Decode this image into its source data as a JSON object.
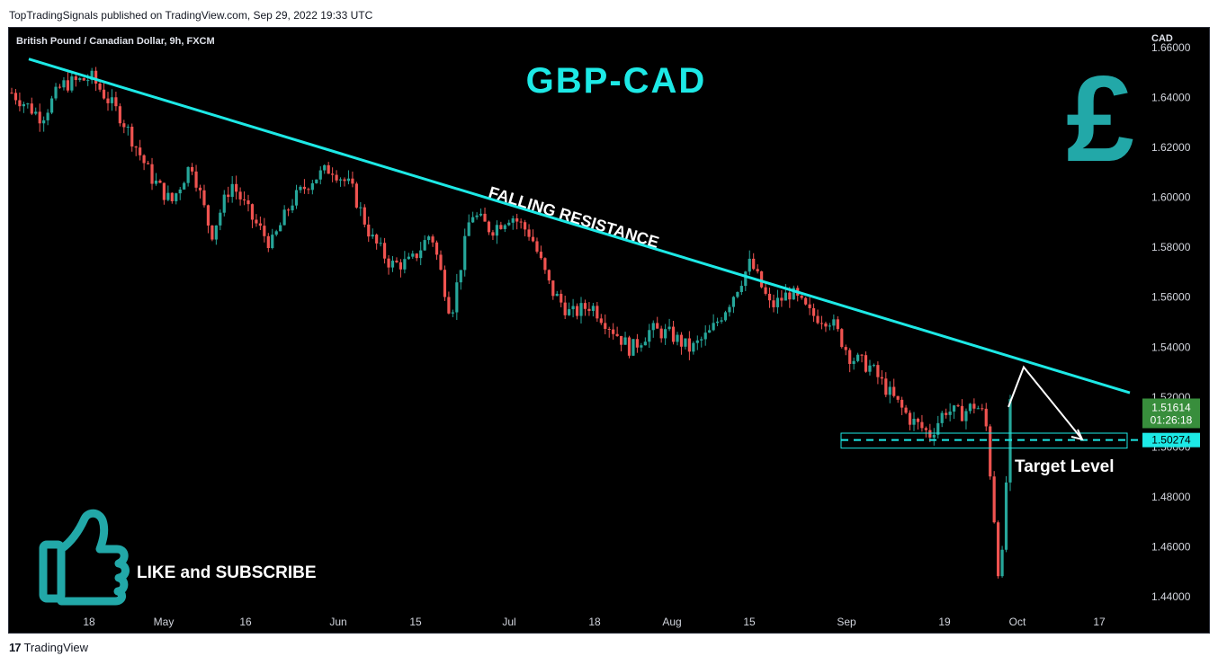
{
  "header": {
    "published": "TopTradingSignals published on TradingView.com, Sep 29, 2022 19:33 UTC"
  },
  "footer": {
    "brand": "TradingView"
  },
  "chart_data": {
    "type": "candlestick",
    "symbol": "British Pound / Canadian Dollar, 9h, FXCM",
    "title": "GBP-CAD",
    "currency": "CAD",
    "ylim": [
      1.432,
      1.668
    ],
    "y_ticks": [
      "1.66000",
      "1.64000",
      "1.62000",
      "1.60000",
      "1.58000",
      "1.56000",
      "1.54000",
      "1.52000",
      "1.50000",
      "1.48000",
      "1.46000",
      "1.44000"
    ],
    "x_ticks": [
      "18",
      "May",
      "16",
      "Jun",
      "15",
      "Jul",
      "18",
      "Aug",
      "15",
      "Sep",
      "19",
      "Oct",
      "17"
    ],
    "close_path": [
      {
        "t": 0.0,
        "v": 1.642
      },
      {
        "t": 0.03,
        "v": 1.632
      },
      {
        "t": 0.05,
        "v": 1.645
      },
      {
        "t": 0.08,
        "v": 1.648
      },
      {
        "t": 0.11,
        "v": 1.632
      },
      {
        "t": 0.14,
        "v": 1.608
      },
      {
        "t": 0.16,
        "v": 1.598
      },
      {
        "t": 0.18,
        "v": 1.614
      },
      {
        "t": 0.2,
        "v": 1.585
      },
      {
        "t": 0.22,
        "v": 1.606
      },
      {
        "t": 0.24,
        "v": 1.592
      },
      {
        "t": 0.26,
        "v": 1.581
      },
      {
        "t": 0.28,
        "v": 1.598
      },
      {
        "t": 0.3,
        "v": 1.607
      },
      {
        "t": 0.32,
        "v": 1.612
      },
      {
        "t": 0.34,
        "v": 1.604
      },
      {
        "t": 0.36,
        "v": 1.584
      },
      {
        "t": 0.38,
        "v": 1.573
      },
      {
        "t": 0.4,
        "v": 1.574
      },
      {
        "t": 0.42,
        "v": 1.586
      },
      {
        "t": 0.44,
        "v": 1.553
      },
      {
        "t": 0.46,
        "v": 1.594
      },
      {
        "t": 0.48,
        "v": 1.587
      },
      {
        "t": 0.5,
        "v": 1.593
      },
      {
        "t": 0.52,
        "v": 1.585
      },
      {
        "t": 0.54,
        "v": 1.563
      },
      {
        "t": 0.56,
        "v": 1.553
      },
      {
        "t": 0.58,
        "v": 1.557
      },
      {
        "t": 0.6,
        "v": 1.548
      },
      {
        "t": 0.62,
        "v": 1.539
      },
      {
        "t": 0.64,
        "v": 1.547
      },
      {
        "t": 0.66,
        "v": 1.545
      },
      {
        "t": 0.68,
        "v": 1.539
      },
      {
        "t": 0.7,
        "v": 1.546
      },
      {
        "t": 0.72,
        "v": 1.559
      },
      {
        "t": 0.74,
        "v": 1.574
      },
      {
        "t": 0.76,
        "v": 1.556
      },
      {
        "t": 0.78,
        "v": 1.562
      },
      {
        "t": 0.8,
        "v": 1.553
      },
      {
        "t": 0.82,
        "v": 1.551
      },
      {
        "t": 0.84,
        "v": 1.536
      },
      {
        "t": 0.86,
        "v": 1.532
      },
      {
        "t": 0.88,
        "v": 1.521
      },
      {
        "t": 0.9,
        "v": 1.511
      },
      {
        "t": 0.92,
        "v": 1.505
      },
      {
        "t": 0.935,
        "v": 1.515
      },
      {
        "t": 0.95,
        "v": 1.513
      },
      {
        "t": 0.965,
        "v": 1.517
      },
      {
        "t": 0.975,
        "v": 1.512
      },
      {
        "t": 0.983,
        "v": 1.476
      },
      {
        "t": 0.99,
        "v": 1.441
      },
      {
        "t": 1.0,
        "v": 1.516
      }
    ],
    "resistance_line": {
      "label": "FALLING RESISTANCE",
      "from": {
        "date": "Apr 15",
        "value": 1.6555
      },
      "to": {
        "date": "Oct 20",
        "value": 1.5217
      }
    },
    "target": {
      "label": "Target Level",
      "value": 1.50274,
      "value_text": "1.50274",
      "zone": [
        1.4995,
        1.5055
      ]
    },
    "projection": [
      1.516,
      1.532,
      1.503
    ],
    "last_price": {
      "value": 1.51614,
      "value_text": "1.51614",
      "countdown": "01:26:18",
      "color": "#388e3c"
    },
    "colors": {
      "up": "#26a69a",
      "down": "#ef5350",
      "accent": "#1de9e6",
      "pound": "#22a8a8"
    }
  },
  "overlays": {
    "pound_symbol": "£",
    "like_text": "LIKE and SUBSCRIBE",
    "like_icon": "thumbs-up-icon"
  }
}
